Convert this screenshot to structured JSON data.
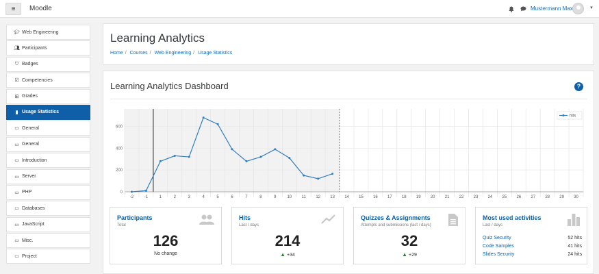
{
  "topbar": {
    "menu_icon": "hamburger-icon",
    "brand": "Moodle",
    "user_name": "Mustermann Max"
  },
  "sidebar": {
    "items": [
      {
        "label": "Web Engineering",
        "icon": "graduation-cap-icon"
      },
      {
        "label": "Participants",
        "icon": "users-icon"
      },
      {
        "label": "Badges",
        "icon": "shield-icon"
      },
      {
        "label": "Competencies",
        "icon": "check-square-icon"
      },
      {
        "label": "Grades",
        "icon": "table-icon"
      },
      {
        "label": "Usage Statistics",
        "icon": "bar-chart-icon",
        "active": true
      },
      {
        "label": "General",
        "icon": "folder-icon"
      },
      {
        "label": "General",
        "icon": "folder-icon"
      },
      {
        "label": "Introduction",
        "icon": "folder-icon"
      },
      {
        "label": "Server",
        "icon": "folder-icon"
      },
      {
        "label": "PHP",
        "icon": "folder-icon"
      },
      {
        "label": "Databases",
        "icon": "folder-icon"
      },
      {
        "label": "JavaScript",
        "icon": "folder-icon"
      },
      {
        "label": "Misc.",
        "icon": "folder-icon"
      },
      {
        "label": "Project",
        "icon": "folder-icon"
      }
    ]
  },
  "header": {
    "title": "Learning Analytics",
    "breadcrumb": [
      "Home",
      "Courses",
      "Web Engineering",
      "Usage Statistics"
    ]
  },
  "dashboard": {
    "title": "Learning Analytics Dashboard"
  },
  "chart_data": {
    "type": "line",
    "series": [
      {
        "name": "hits",
        "x": [
          -2,
          -1,
          1,
          2,
          3,
          4,
          5,
          6,
          7,
          8,
          9,
          10,
          11,
          12,
          13
        ],
        "values": [
          0,
          10,
          280,
          330,
          320,
          680,
          620,
          390,
          280,
          320,
          390,
          310,
          150,
          120,
          165
        ]
      }
    ],
    "x_ticks": [
      -2,
      -1,
      1,
      2,
      3,
      4,
      5,
      6,
      7,
      8,
      9,
      10,
      11,
      12,
      13,
      14,
      15,
      16,
      17,
      18,
      19,
      20,
      21,
      22,
      23,
      24,
      25,
      26,
      27,
      28,
      29,
      30
    ],
    "y_ticks": [
      0,
      200,
      400,
      600
    ],
    "ylim": [
      0,
      760
    ],
    "shaded_range": [
      -1,
      13
    ],
    "legend": "top-right",
    "color": "#2f7cc0"
  },
  "stats": {
    "participants": {
      "title": "Participants",
      "subtitle": "Total",
      "value": "126",
      "note": "No change"
    },
    "hits": {
      "title": "Hits",
      "subtitle": "Last / days",
      "value": "214",
      "delta": "+34"
    },
    "quizzes": {
      "title": "Quizzes & Assignments",
      "subtitle": "Attempts and submissions (last / days)",
      "value": "32",
      "delta": "+29"
    },
    "activities": {
      "title": "Most used activities",
      "subtitle": "Last / days",
      "rows": [
        {
          "name": "Quiz Security",
          "hits": "52 hits"
        },
        {
          "name": "Code Samples",
          "hits": "41 hits"
        },
        {
          "name": "Slides Security",
          "hits": "24 hits"
        }
      ]
    }
  }
}
